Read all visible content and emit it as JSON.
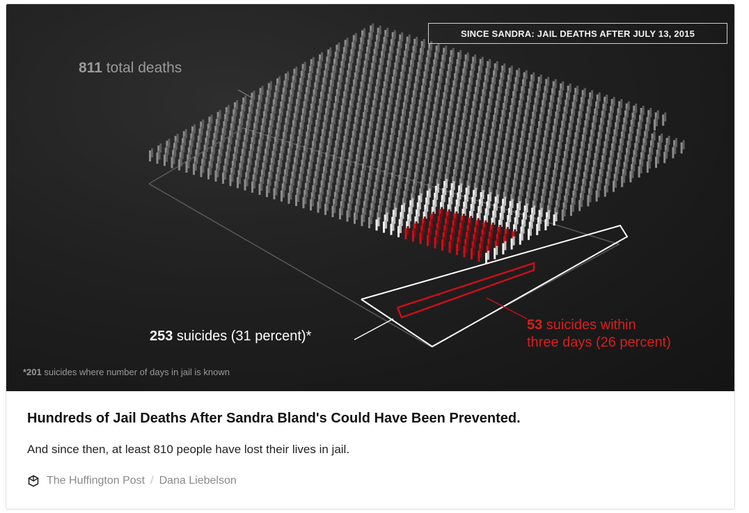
{
  "hero": {
    "badge": "SINCE SANDRA: JAIL DEATHS AFTER JULY 13, 2015",
    "total_num": "811",
    "total_text": " total deaths",
    "suicides_num": "253",
    "suicides_text": " suicides (31 percent)*",
    "red_num": "53",
    "red_text_1": " suicides within",
    "red_text_2": "three days (26 percent)",
    "foot_num": "*201",
    "foot_text": " suicides where number of days in jail is known",
    "colors": {
      "grey_bars": "#8c8c8c",
      "white_bars": "#f0f0f0",
      "red_bars": "#c8101a",
      "accent_red": "#d81f1f"
    }
  },
  "article": {
    "title": "Hundreds of Jail Deaths After Sandra Bland's Could Have Been Prevented.",
    "description": "And since then, at least 810 people have lost their lives in jail.",
    "source": "The Huffington Post",
    "separator": "/",
    "author": "Dana Liebelson",
    "source_icon": "huffpost-icon"
  }
}
